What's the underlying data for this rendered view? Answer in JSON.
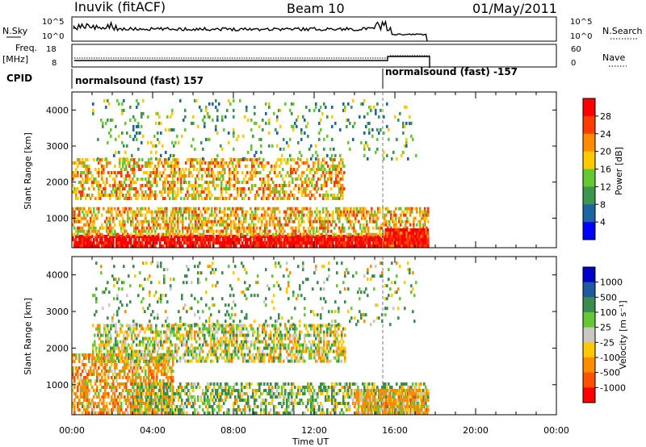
{
  "header": {
    "station": "Inuvik (fitACF)",
    "beam": "Beam 10",
    "date": "01/May/2011"
  },
  "param_panels": {
    "nsky_label": "N.Sky",
    "nsky_ticks": [
      "10^5",
      "10^0"
    ],
    "nsearch_label": "N.Search",
    "nsearch_ticks": [
      "10^5",
      "10^0"
    ],
    "freq_label_1": "Freq.",
    "freq_label_2": "[MHz]",
    "freq_ticks": [
      "18",
      "8"
    ],
    "nave_label": "Nave",
    "nave_ticks": [
      "60",
      "0"
    ],
    "cpid_label": "CPID",
    "cpid_modes": [
      {
        "text": "normalsound (fast) 157",
        "start_hour": 0
      },
      {
        "text": "normalsound (fast) -157",
        "start_hour": 15.3
      }
    ]
  },
  "time_axis": {
    "label": "Time UT",
    "ticks": [
      "00:00",
      "04:00",
      "08:00",
      "12:00",
      "16:00",
      "20:00",
      "00:00"
    ]
  },
  "range_axis": {
    "label": "Slant Range [km]",
    "ticks": [
      "4000",
      "3000",
      "2000",
      "1000"
    ]
  },
  "power_colorbar": {
    "title": "Power [dB]",
    "labels": [
      "28",
      "24",
      "20",
      "16",
      "12",
      "8",
      "4"
    ],
    "colors": [
      "#ff0000",
      "#ff3c00",
      "#ff8c00",
      "#ffc800",
      "#64c832",
      "#3c9650",
      "#1e64a0",
      "#0000ff"
    ]
  },
  "velocity_colorbar": {
    "title": "Velocity [m s⁻¹]",
    "labels": [
      "1000",
      "500",
      "100",
      "25",
      "-25",
      "-100",
      "-500",
      "-1000"
    ],
    "colors": [
      "#0000c8",
      "#1e5aa0",
      "#3c8c50",
      "#64c832",
      "#c8c8c0",
      "#ffc800",
      "#ff8c00",
      "#ff5000",
      "#ff0000"
    ]
  },
  "chart_data": [
    {
      "type": "heatmap",
      "title": "Power",
      "xlabel": "Time UT",
      "ylabel": "Slant Range [km]",
      "xlim_hours": [
        0,
        24
      ],
      "ylim_km": [
        180,
        4500
      ],
      "data_end_hour": 17.6,
      "zlim": [
        0,
        30
      ],
      "echo_regions": [
        {
          "t0": 0.0,
          "t1": 17.6,
          "r0": 180,
          "r1": 500,
          "level": 29,
          "density": 0.9
        },
        {
          "t0": 0.0,
          "t1": 17.6,
          "r0": 500,
          "r1": 1250,
          "level": 18,
          "density": 0.55
        },
        {
          "t0": 0.0,
          "t1": 13.5,
          "r0": 1500,
          "r1": 2600,
          "level": 18,
          "density": 0.45
        },
        {
          "t0": 1.0,
          "t1": 17.0,
          "r0": 2600,
          "r1": 4300,
          "level": 10,
          "density": 0.1
        },
        {
          "t0": 15.5,
          "t1": 17.6,
          "r0": 180,
          "r1": 700,
          "level": 28,
          "density": 0.95
        }
      ]
    },
    {
      "type": "heatmap",
      "title": "Velocity",
      "xlabel": "Time UT",
      "ylabel": "Slant Range [km]",
      "xlim_hours": [
        0,
        24
      ],
      "ylim_km": [
        180,
        4500
      ],
      "data_end_hour": 17.6,
      "zlim": [
        -1000,
        1000
      ],
      "echo_regions": [
        {
          "t0": 0.0,
          "t1": 5.0,
          "r0": 180,
          "r1": 1800,
          "level": -250,
          "density": 0.6
        },
        {
          "t0": 3.0,
          "t1": 17.6,
          "r0": 180,
          "r1": 1000,
          "level": 60,
          "density": 0.5
        },
        {
          "t0": 1.0,
          "t1": 13.5,
          "r0": 1600,
          "r1": 2600,
          "level": 0,
          "density": 0.55
        },
        {
          "t0": 14.0,
          "t1": 17.6,
          "r0": 180,
          "r1": 800,
          "level": -200,
          "density": 0.7
        },
        {
          "t0": 1.0,
          "t1": 17.0,
          "r0": 2600,
          "r1": 4300,
          "level": 100,
          "density": 0.1
        }
      ]
    }
  ]
}
